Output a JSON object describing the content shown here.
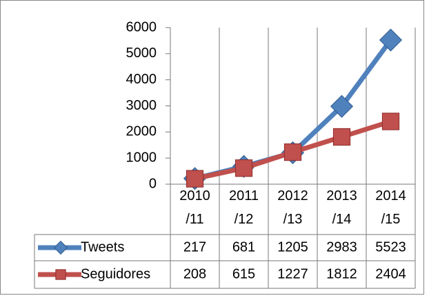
{
  "chart_data": {
    "type": "line",
    "categories": [
      "2010/11",
      "2011/12",
      "2012/13",
      "2013/14",
      "2014/15"
    ],
    "series": [
      {
        "name": "Tweets",
        "color": "#4f81bd",
        "marker": "diamond",
        "values": [
          217,
          681,
          1205,
          2983,
          5523
        ]
      },
      {
        "name": "Seguidores",
        "color": "#c0504d",
        "marker": "square",
        "values": [
          208,
          615,
          1227,
          1812,
          2404
        ]
      }
    ],
    "ylim": [
      0,
      6000
    ],
    "yticks": [
      0,
      1000,
      2000,
      3000,
      4000,
      5000,
      6000
    ],
    "data_table": true
  }
}
